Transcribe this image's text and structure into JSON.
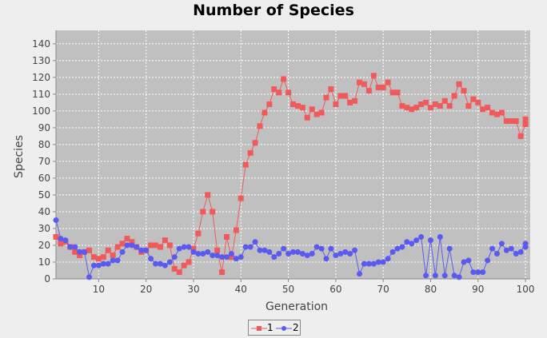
{
  "chart_data": {
    "type": "line",
    "title": "Number of Species",
    "xlabel": "Generation",
    "ylabel": "Species",
    "xlim": [
      1,
      101
    ],
    "ylim": [
      0,
      148
    ],
    "xticks": [
      10,
      20,
      30,
      40,
      50,
      60,
      70,
      80,
      90,
      100
    ],
    "yticks": [
      0,
      10,
      20,
      30,
      40,
      50,
      60,
      70,
      80,
      90,
      100,
      110,
      120,
      130,
      140
    ],
    "grid": true,
    "legend_position": "bottom",
    "plot_background": "#c0c0c0",
    "x": [
      1,
      2,
      3,
      4,
      5,
      6,
      7,
      8,
      9,
      10,
      11,
      12,
      13,
      14,
      15,
      16,
      17,
      18,
      19,
      20,
      21,
      22,
      23,
      24,
      25,
      26,
      27,
      28,
      29,
      30,
      31,
      32,
      33,
      34,
      35,
      36,
      37,
      38,
      39,
      40,
      41,
      42,
      43,
      44,
      45,
      46,
      47,
      48,
      49,
      50,
      51,
      52,
      53,
      54,
      55,
      56,
      57,
      58,
      59,
      60,
      61,
      62,
      63,
      64,
      65,
      66,
      67,
      68,
      69,
      70,
      71,
      72,
      73,
      74,
      75,
      76,
      77,
      78,
      79,
      80,
      81,
      82,
      83,
      84,
      85,
      86,
      87,
      88,
      89,
      90,
      91,
      92,
      93,
      94,
      95,
      96,
      97,
      98,
      99,
      100
    ],
    "series": [
      {
        "name": "1",
        "color": "#f05a5a",
        "marker": "square",
        "values": [
          25,
          21,
          22,
          19,
          16,
          14,
          16,
          17,
          13,
          12,
          13,
          17,
          14,
          19,
          21,
          24,
          22,
          19,
          16,
          17,
          20,
          20,
          19,
          23,
          20,
          6,
          4,
          8,
          10,
          18,
          27,
          40,
          50,
          40,
          17,
          4,
          25,
          13,
          29,
          48,
          68,
          75,
          81,
          91,
          99,
          104,
          113,
          111,
          119,
          111,
          104,
          103,
          102,
          96,
          101,
          98,
          99,
          108,
          113,
          104,
          109,
          109,
          105,
          106,
          117,
          116,
          112,
          121,
          114,
          114,
          117,
          111,
          111,
          103,
          102,
          101,
          102,
          104,
          105,
          102,
          104,
          103,
          106,
          103,
          109,
          116,
          112,
          103,
          107,
          105,
          101,
          102,
          99,
          98,
          99,
          94,
          94,
          94,
          85,
          92
        ]
      },
      {
        "name": "2",
        "color": "#5a5af0",
        "marker": "circle",
        "values": [
          35,
          24,
          23,
          19,
          19,
          16,
          16,
          1,
          8,
          8,
          9,
          9,
          11,
          11,
          16,
          20,
          20,
          19,
          17,
          17,
          12,
          9,
          9,
          8,
          10,
          13,
          18,
          19,
          19,
          16,
          15,
          15,
          16,
          14,
          14,
          13,
          13,
          15,
          12,
          13,
          19,
          19,
          22,
          17,
          17,
          16,
          13,
          15,
          18,
          15,
          16,
          16,
          15,
          14,
          15,
          19,
          18,
          12,
          18,
          14,
          15,
          16,
          15,
          17,
          3,
          9,
          9,
          9,
          10,
          10,
          12,
          16,
          18,
          19,
          22,
          21,
          23,
          25,
          2,
          23,
          2,
          25,
          2,
          18,
          2,
          1,
          10,
          11,
          4,
          4,
          4,
          11,
          18,
          15,
          21,
          17,
          18,
          15,
          16,
          21
        ]
      }
    ],
    "series_extra": {
      "1": [
        95
      ],
      "2": [
        19
      ]
    }
  }
}
